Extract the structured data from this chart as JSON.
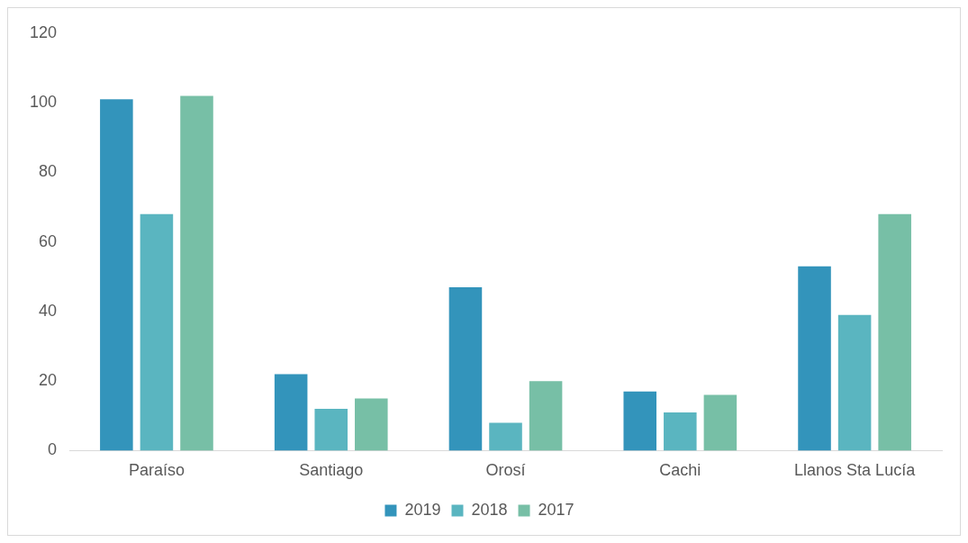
{
  "chart_data": {
    "type": "bar",
    "categories": [
      "Paraíso",
      "Santiago",
      "Orosí",
      "Cachi",
      "Llanos Sta Lucía"
    ],
    "series": [
      {
        "name": "2019",
        "color": "#3394bb",
        "values": [
          101,
          22,
          47,
          17,
          53
        ]
      },
      {
        "name": "2018",
        "color": "#5ab5c0",
        "values": [
          68,
          12,
          8,
          11,
          39
        ]
      },
      {
        "name": "2017",
        "color": "#77bfa6",
        "values": [
          102,
          15,
          20,
          16,
          68
        ]
      }
    ],
    "ylim": [
      0,
      120
    ],
    "yticks": [
      0,
      20,
      40,
      60,
      80,
      100,
      120
    ],
    "grid": false,
    "legend": "bottom"
  }
}
